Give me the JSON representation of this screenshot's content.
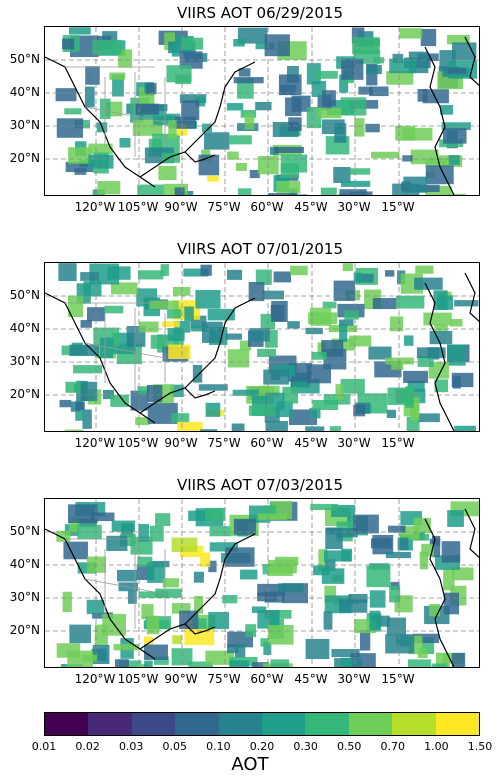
{
  "panels": [
    {
      "title": "VIIRS AOT 06/29/2015"
    },
    {
      "title": "VIIRS AOT 07/01/2015"
    },
    {
      "title": "VIIRS AOT 07/03/2015"
    }
  ],
  "lat_labels": [
    "50°N",
    "40°N",
    "30°N",
    "20°N"
  ],
  "lon_labels": [
    "120°W",
    "105°W",
    "90°W",
    "75°W",
    "60°W",
    "45°W",
    "30°W",
    "15°W"
  ],
  "colorbar": {
    "label": "AOT",
    "ticks": [
      "0.01",
      "0.02",
      "0.03",
      "0.05",
      "0.10",
      "0.20",
      "0.30",
      "0.50",
      "0.70",
      "1.00",
      "1.50"
    ],
    "colors": [
      "#440154",
      "#482878",
      "#3e4989",
      "#31688e",
      "#26828e",
      "#1f9e89",
      "#35b779",
      "#6ece58",
      "#b5de2b",
      "#fde725"
    ]
  }
}
